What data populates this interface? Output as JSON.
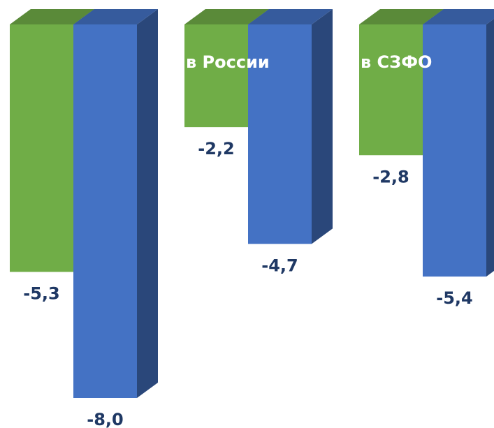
{
  "chart_data": {
    "type": "bar3d",
    "categories": [
      null,
      "в России",
      "в СЗФО"
    ],
    "series": [
      {
        "color": "#70ad47",
        "values": [
          -5.3,
          -2.2,
          -2.8
        ],
        "value_labels": [
          "-5,3",
          "-2,2",
          "-2,8"
        ]
      },
      {
        "color": "#4472c4",
        "values": [
          -8.0,
          -4.7,
          -5.4
        ],
        "value_labels": [
          "-8,0",
          "-4,7",
          "-5,4"
        ]
      }
    ],
    "ylim": [
      -8,
      0
    ]
  }
}
